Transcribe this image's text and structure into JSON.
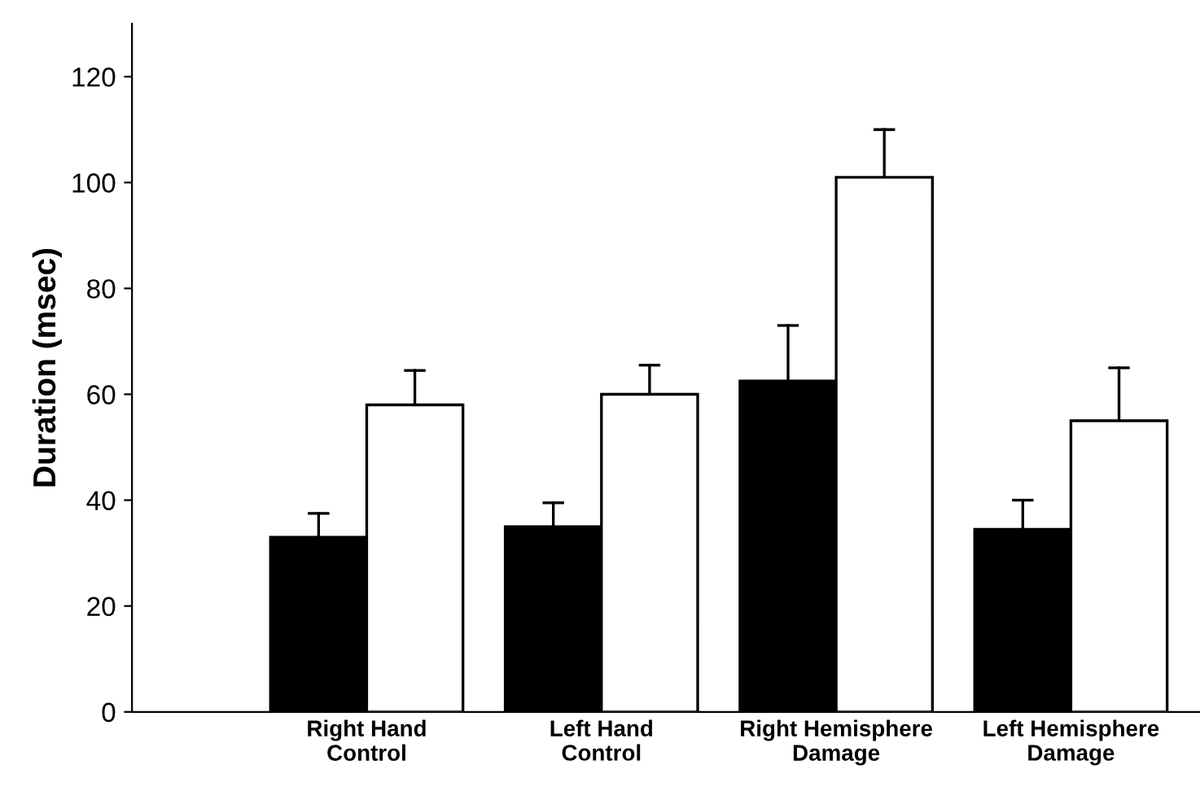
{
  "chart_data": {
    "type": "bar",
    "ylabel": "Duration (msec)",
    "categories": [
      "Right Hand\nControl",
      "Left Hand\nControl",
      "Right Hemisphere\nDamage",
      "Left Hemisphere\nDamage"
    ],
    "series": [
      {
        "color": "#000000",
        "values": [
          33,
          35,
          62.5,
          34.5
        ],
        "errors": [
          [
            33,
            37.5
          ],
          [
            35,
            39.5
          ],
          [
            62.5,
            73
          ],
          [
            34.5,
            40
          ]
        ]
      },
      {
        "color": "#ffffff",
        "values": [
          58,
          60,
          101,
          55
        ],
        "errors": [
          [
            58,
            64.5
          ],
          [
            60,
            65.5
          ],
          [
            101,
            110
          ],
          [
            55,
            65
          ]
        ]
      }
    ],
    "ylim": [
      0,
      130
    ],
    "yticks": [
      0,
      20,
      40,
      60,
      80,
      100,
      120
    ],
    "grid": false,
    "legend": false
  }
}
